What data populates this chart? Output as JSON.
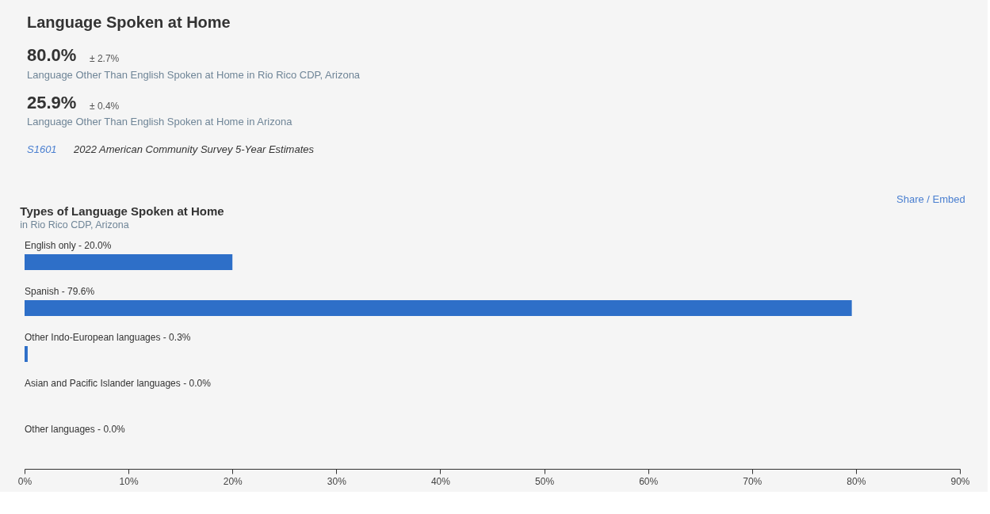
{
  "chart_data": {
    "type": "bar",
    "orientation": "horizontal",
    "title": "Types of Language Spoken at Home",
    "subtitle": "in Rio Rico CDP, Arizona",
    "categories": [
      "English only - 20.0%",
      "Spanish - 79.6%",
      "Other Indo-European languages - 0.3%",
      "Asian and Pacific Islander languages - 0.0%",
      "Other languages - 0.0%"
    ],
    "values": [
      20.0,
      79.6,
      0.3,
      0.0,
      0.0
    ],
    "color": "#2e6fc8",
    "xlim": [
      0,
      90
    ],
    "xticks": [
      {
        "value": 0,
        "label": "0%"
      },
      {
        "value": 10,
        "label": "10%"
      },
      {
        "value": 20,
        "label": "20%"
      },
      {
        "value": 30,
        "label": "30%"
      },
      {
        "value": 40,
        "label": "40%"
      },
      {
        "value": 50,
        "label": "50%"
      },
      {
        "value": 60,
        "label": "60%"
      },
      {
        "value": 70,
        "label": "70%"
      },
      {
        "value": 80,
        "label": "80%"
      },
      {
        "value": 90,
        "label": "90%"
      }
    ],
    "grid": false,
    "annotations": [
      "Language Spoken at Home",
      "80.0%",
      "± 2.7%",
      "Language Other Than English Spoken at Home in Rio Rico CDP, Arizona",
      "25.9%",
      "± 0.4%",
      "Language Other Than English Spoken at Home in Arizona",
      "S1601",
      "2022 American Community Survey 5-Year Estimates",
      "Share / Embed"
    ]
  }
}
